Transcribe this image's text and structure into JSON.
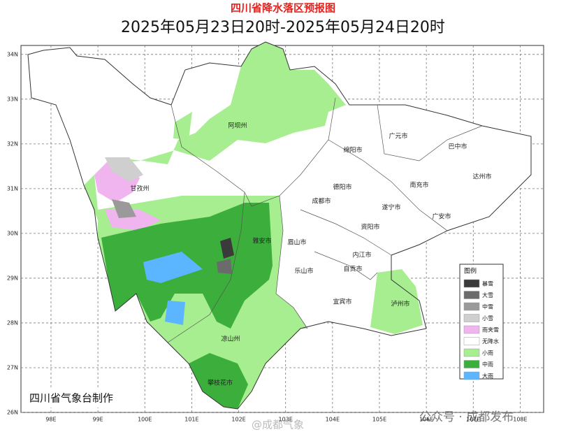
{
  "title": "四川省降水落区预报图",
  "subtitle": "2025年05月23日20时-2025年05月24日20时",
  "map": {
    "xlim": [
      97.36,
      108.5
    ],
    "ylim": [
      26,
      34.2
    ],
    "xticks": [
      {
        "value": 98,
        "label": "98E"
      },
      {
        "value": 99,
        "label": "99E"
      },
      {
        "value": 100,
        "label": "100E"
      },
      {
        "value": 101,
        "label": "101E"
      },
      {
        "value": 102,
        "label": "102E"
      },
      {
        "value": 103,
        "label": "103E"
      },
      {
        "value": 104,
        "label": "104E"
      },
      {
        "value": 105,
        "label": "105E"
      },
      {
        "value": 106,
        "label": "106E"
      },
      {
        "value": 107,
        "label": "107E"
      },
      {
        "value": 108,
        "label": "108E"
      }
    ],
    "yticks": [
      {
        "value": 26,
        "label": "26N"
      },
      {
        "value": 27,
        "label": "27N"
      },
      {
        "value": 28,
        "label": "28N"
      },
      {
        "value": 29,
        "label": "29N"
      },
      {
        "value": 30,
        "label": "30N"
      },
      {
        "value": 31,
        "label": "31N"
      },
      {
        "value": 32,
        "label": "32N"
      },
      {
        "value": 33,
        "label": "33N"
      },
      {
        "value": 34,
        "label": "34N"
      }
    ],
    "grid": true
  },
  "cities": [
    "阿坝州",
    "甘孜州",
    "雅安市",
    "凉山州",
    "攀枝花市",
    "乐山市",
    "眉山市",
    "成都市",
    "德阳市",
    "绵阳市",
    "广元市",
    "巴中市",
    "达州市",
    "南充市",
    "遂宁市",
    "资阳市",
    "内江市",
    "自贡市",
    "宜宾市",
    "泸州市",
    "广安市"
  ],
  "legend": {
    "title": "图例",
    "items": [
      {
        "label": "暴雪",
        "color": "#3a3a3a"
      },
      {
        "label": "大雪",
        "color": "#6b6b6b"
      },
      {
        "label": "中雪",
        "color": "#9a9a9a"
      },
      {
        "label": "小雪",
        "color": "#cfcfcf"
      },
      {
        "label": "雨夹雪",
        "color": "#f0b4ee"
      },
      {
        "label": "无降水",
        "color": "#ffffff"
      },
      {
        "label": "小雨",
        "color": "#a6ee8f"
      },
      {
        "label": "中雨",
        "color": "#3cae3c"
      },
      {
        "label": "大雨",
        "color": "#5cb6ff"
      }
    ]
  },
  "footer": "四川省气象台制作",
  "watermarks": [
    "@成都气象",
    "公众号 · 成都发布"
  ]
}
